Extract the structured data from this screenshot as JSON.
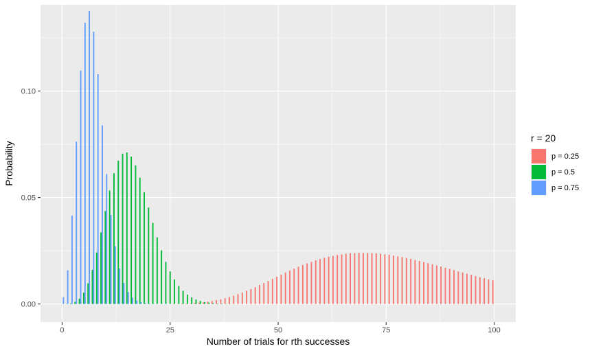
{
  "chart_data": {
    "type": "bar",
    "xlabel": "Number of trials for rth successes",
    "ylabel": "Probability",
    "xlim": [
      -5,
      105
    ],
    "ylim": [
      -0.0085,
      0.1405
    ],
    "x_ticks": [
      0,
      25,
      50,
      75,
      100
    ],
    "x_tick_labels": [
      "0",
      "25",
      "50",
      "75",
      "100"
    ],
    "y_ticks": [
      0.0,
      0.05,
      0.1
    ],
    "y_tick_labels": [
      "0.00",
      "0.05",
      "0.10"
    ],
    "grid": true,
    "legend": {
      "title": "r = 20",
      "position": "right",
      "entries": [
        "p = 0.25",
        "p = 0.5",
        "p = 0.75"
      ]
    },
    "series": [
      {
        "name": "p = 0.25",
        "color": "#F8766D",
        "x_start": 0,
        "values": [
          0,
          0,
          0,
          0,
          0,
          0,
          0,
          0,
          0,
          0,
          0,
          0,
          0,
          0,
          0,
          0,
          0,
          0,
          0,
          0,
          0,
          0,
          0,
          0,
          0,
          0,
          0.0001,
          0.0001,
          0.0002,
          0.0002,
          0.0003,
          0.0005,
          0.0006,
          0.0008,
          0.0011,
          0.0014,
          0.0018,
          0.0022,
          0.0027,
          0.0033,
          0.0039,
          0.0046,
          0.0054,
          0.0062,
          0.007,
          0.0079,
          0.0089,
          0.0098,
          0.0108,
          0.0118,
          0.0128,
          0.0138,
          0.0148,
          0.0157,
          0.0166,
          0.0175,
          0.0183,
          0.0191,
          0.0198,
          0.0205,
          0.0211,
          0.0217,
          0.0222,
          0.0226,
          0.023,
          0.0233,
          0.0236,
          0.0238,
          0.0239,
          0.024,
          0.024,
          0.024,
          0.0239,
          0.0238,
          0.0236,
          0.0233,
          0.0231,
          0.0227,
          0.0224,
          0.022,
          0.0216,
          0.0212,
          0.0207,
          0.0202,
          0.0197,
          0.0192,
          0.0187,
          0.0181,
          0.0176,
          0.017,
          0.0165,
          0.0159,
          0.0153,
          0.0148,
          0.0142,
          0.0137,
          0.0131,
          0.0126,
          0.0121,
          0.0116,
          0.0111
        ]
      },
      {
        "name": "p = 0.5",
        "color": "#00BA38",
        "x_start": 0,
        "values": [
          0,
          0.0001,
          0.0003,
          0.001,
          0.0025,
          0.0053,
          0.0097,
          0.016,
          0.0242,
          0.0336,
          0.0437,
          0.0533,
          0.0614,
          0.0673,
          0.0706,
          0.0712,
          0.0692,
          0.0651,
          0.0593,
          0.0525,
          0.0453,
          0.0381,
          0.0313,
          0.0252,
          0.0198,
          0.0153,
          0.0115,
          0.0085,
          0.0062,
          0.0044,
          0.0031,
          0.0021,
          0.0014,
          0.0009,
          0.0006,
          0.0004,
          0.0002,
          0.0002,
          0.0001,
          0.0001,
          0,
          0,
          0,
          0,
          0,
          0,
          0,
          0,
          0,
          0,
          0,
          0,
          0,
          0,
          0,
          0,
          0,
          0,
          0,
          0,
          0,
          0,
          0,
          0,
          0,
          0,
          0,
          0,
          0,
          0,
          0,
          0,
          0,
          0,
          0,
          0,
          0,
          0,
          0,
          0,
          0,
          0,
          0,
          0,
          0,
          0,
          0,
          0,
          0,
          0,
          0,
          0,
          0,
          0,
          0,
          0,
          0,
          0,
          0,
          0,
          0
        ]
      },
      {
        "name": "p = 0.75",
        "color": "#619CFF",
        "x_start": 0,
        "values": [
          0.0032,
          0.0158,
          0.0415,
          0.0762,
          0.1096,
          0.1321,
          0.1376,
          0.1278,
          0.1079,
          0.0839,
          0.061,
          0.0418,
          0.0271,
          0.0167,
          0.0099,
          0.0056,
          0.003,
          0.0016,
          0.0008,
          0.0004,
          0.0002,
          0.0001,
          0,
          0,
          0,
          0,
          0,
          0,
          0,
          0,
          0,
          0,
          0,
          0,
          0,
          0,
          0,
          0,
          0,
          0,
          0,
          0,
          0,
          0,
          0,
          0,
          0,
          0,
          0,
          0,
          0,
          0,
          0,
          0,
          0,
          0,
          0,
          0,
          0,
          0,
          0,
          0,
          0,
          0,
          0,
          0,
          0,
          0,
          0,
          0,
          0,
          0,
          0,
          0,
          0,
          0,
          0,
          0,
          0,
          0,
          0,
          0,
          0,
          0,
          0,
          0,
          0,
          0,
          0,
          0,
          0,
          0,
          0,
          0,
          0,
          0,
          0,
          0,
          0,
          0,
          0
        ]
      }
    ]
  }
}
